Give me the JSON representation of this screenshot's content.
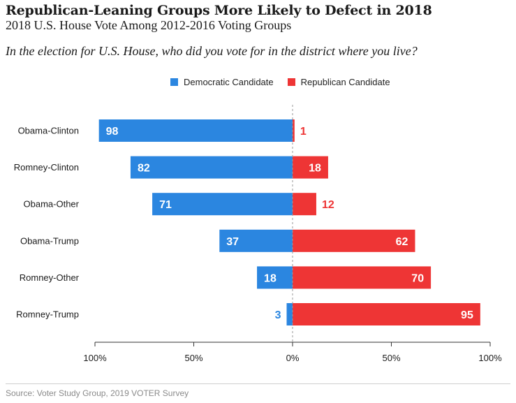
{
  "chart_data": {
    "type": "bar",
    "orientation": "horizontal-diverging",
    "title": "Republican-Leaning Groups More Likely to Defect in 2018",
    "subtitle": "2018 U.S. House Vote Among 2012-2016 Voting Groups",
    "question": "In the election for U.S. House, who did you vote for in the district where you live?",
    "categories": [
      "Obama-Clinton",
      "Romney-Clinton",
      "Obama-Other",
      "Obama-Trump",
      "Romney-Other",
      "Romney-Trump"
    ],
    "series": [
      {
        "name": "Democratic Candidate",
        "color": "#2b86e0",
        "direction": "left",
        "values": [
          98,
          82,
          71,
          37,
          18,
          3
        ]
      },
      {
        "name": "Republican Candidate",
        "color": "#ee3535",
        "direction": "right",
        "values": [
          1,
          18,
          12,
          62,
          70,
          95
        ]
      }
    ],
    "x_ticks": [
      "100%",
      "50%",
      "0%",
      "50%",
      "100%"
    ],
    "xlim": [
      -100,
      100
    ],
    "legend_position": "top"
  },
  "source": "Source: Voter Study Group, 2019 VOTER Survey"
}
